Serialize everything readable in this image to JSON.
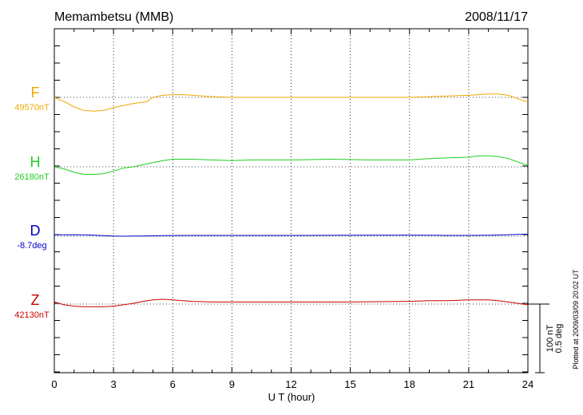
{
  "chart_data": {
    "type": "line",
    "title": "Memambetsu (MMB)",
    "date": "2008/11/17",
    "xlabel": "U T (hour)",
    "xlim": [
      0,
      24
    ],
    "xticks": [
      "0",
      "3",
      "6",
      "9",
      "12",
      "15",
      "18",
      "21",
      "24"
    ],
    "grid": true,
    "scale_bar": {
      "value_nt": 100,
      "label_nt": "100 nT",
      "label_deg": "0.5 deg"
    },
    "plotted_note": "Plotted at 2009/03/09 20:02 UT",
    "series": [
      {
        "name": "F",
        "baseline_label": "49570nT",
        "baseline": 49570,
        "color": "#f0a800",
        "points": [
          [
            0,
            49570
          ],
          [
            0.5,
            49564
          ],
          [
            1,
            49556
          ],
          [
            1.5,
            49551
          ],
          [
            2,
            49550
          ],
          [
            2.5,
            49551
          ],
          [
            3,
            49555
          ],
          [
            3.5,
            49558
          ],
          [
            4,
            49561
          ],
          [
            4.5,
            49563
          ],
          [
            4.7,
            49564
          ],
          [
            5,
            49570
          ],
          [
            5.5,
            49573
          ],
          [
            6,
            49574
          ],
          [
            6.5,
            49574
          ],
          [
            7,
            49573
          ],
          [
            8,
            49571
          ],
          [
            9,
            49570
          ],
          [
            10,
            49570
          ],
          [
            12,
            49570
          ],
          [
            14,
            49570
          ],
          [
            16,
            49570
          ],
          [
            18,
            49570
          ],
          [
            19,
            49571
          ],
          [
            20,
            49572
          ],
          [
            21,
            49573
          ],
          [
            21.5,
            49574
          ],
          [
            22,
            49575
          ],
          [
            22.5,
            49575
          ],
          [
            23,
            49573
          ],
          [
            23.5,
            49568
          ],
          [
            24,
            49563
          ]
        ]
      },
      {
        "name": "H",
        "baseline_label": "26180nT",
        "baseline": 26180,
        "color": "#22cc22",
        "points": [
          [
            0,
            26180
          ],
          [
            0.5,
            26177
          ],
          [
            1,
            26172
          ],
          [
            1.5,
            26169
          ],
          [
            2,
            26169
          ],
          [
            2.5,
            26170
          ],
          [
            3,
            26174
          ],
          [
            3.5,
            26178
          ],
          [
            4,
            26180
          ],
          [
            4.5,
            26183
          ],
          [
            5,
            26186
          ],
          [
            5.5,
            26189
          ],
          [
            6,
            26191
          ],
          [
            6.5,
            26191
          ],
          [
            7,
            26191
          ],
          [
            8,
            26190
          ],
          [
            9,
            26189
          ],
          [
            10,
            26190
          ],
          [
            12,
            26190
          ],
          [
            14,
            26191
          ],
          [
            16,
            26190
          ],
          [
            18,
            26190
          ],
          [
            19,
            26192
          ],
          [
            20,
            26193
          ],
          [
            21,
            26194
          ],
          [
            21.5,
            26196
          ],
          [
            22,
            26196
          ],
          [
            22.5,
            26195
          ],
          [
            23,
            26192
          ],
          [
            23.5,
            26187
          ],
          [
            24,
            26182
          ]
        ]
      },
      {
        "name": "D",
        "baseline_label": "-8.7deg",
        "baseline": -8.7,
        "color": "#0000cc",
        "points": [
          [
            0,
            -8.69
          ],
          [
            0.5,
            -8.69
          ],
          [
            1,
            -8.689
          ],
          [
            1.5,
            -8.69
          ],
          [
            2,
            -8.692
          ],
          [
            2.5,
            -8.696
          ],
          [
            3,
            -8.699
          ],
          [
            3.5,
            -8.7
          ],
          [
            4,
            -8.699
          ],
          [
            4.5,
            -8.698
          ],
          [
            5,
            -8.697
          ],
          [
            5.5,
            -8.696
          ],
          [
            6,
            -8.695
          ],
          [
            7,
            -8.694
          ],
          [
            9,
            -8.694
          ],
          [
            12,
            -8.694
          ],
          [
            15,
            -8.693
          ],
          [
            18,
            -8.692
          ],
          [
            19,
            -8.693
          ],
          [
            20,
            -8.694
          ],
          [
            21,
            -8.694
          ],
          [
            22,
            -8.693
          ],
          [
            23,
            -8.689
          ],
          [
            23.5,
            -8.687
          ],
          [
            24,
            -8.685
          ]
        ]
      },
      {
        "name": "Z",
        "baseline_label": "42130nT",
        "baseline": 42130,
        "color": "#cc0000",
        "points": [
          [
            0,
            42133
          ],
          [
            0.5,
            42129
          ],
          [
            1,
            42127
          ],
          [
            1.5,
            42126
          ],
          [
            2,
            42126
          ],
          [
            2.5,
            42126
          ],
          [
            3,
            42127
          ],
          [
            3.5,
            42129
          ],
          [
            4,
            42131
          ],
          [
            4.5,
            42134
          ],
          [
            5,
            42136
          ],
          [
            5.5,
            42137
          ],
          [
            6,
            42136
          ],
          [
            6.5,
            42135
          ],
          [
            7,
            42134
          ],
          [
            8,
            42133
          ],
          [
            9,
            42133
          ],
          [
            12,
            42133
          ],
          [
            15,
            42133
          ],
          [
            18,
            42134
          ],
          [
            19,
            42135
          ],
          [
            20,
            42135
          ],
          [
            21,
            42136
          ],
          [
            22,
            42136
          ],
          [
            22.5,
            42135
          ],
          [
            23,
            42133
          ],
          [
            23.5,
            42131
          ],
          [
            24,
            42129
          ]
        ]
      }
    ]
  }
}
